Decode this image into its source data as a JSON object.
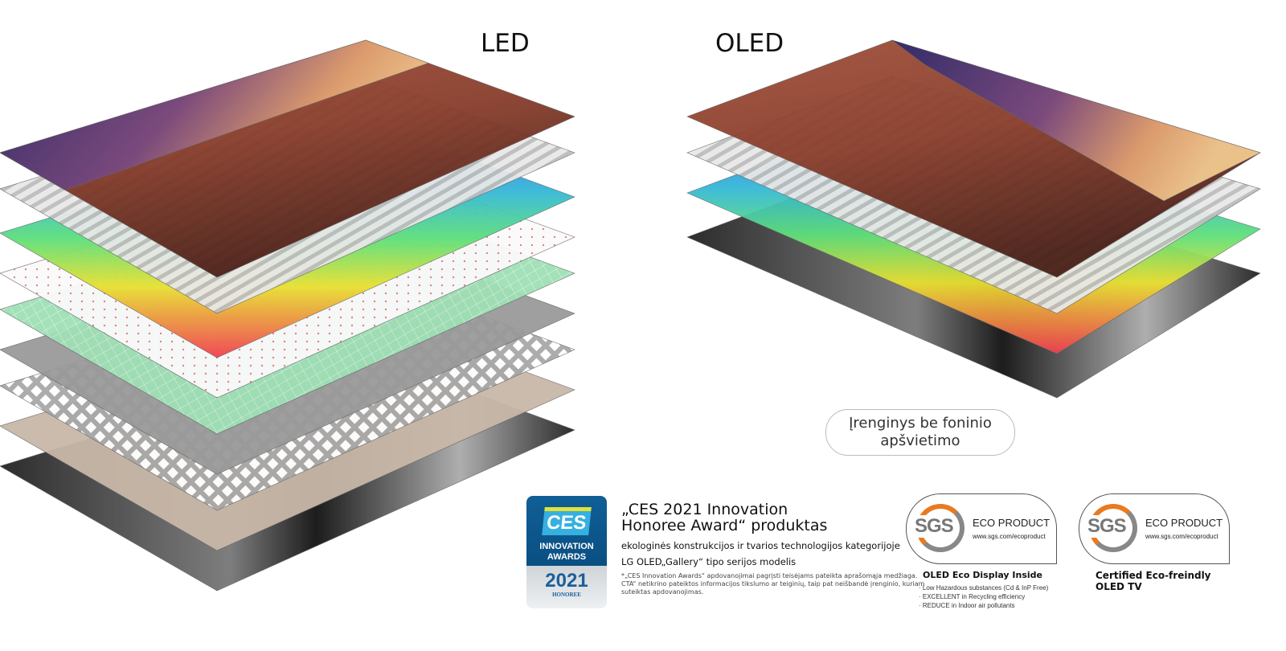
{
  "titles": {
    "led": "LED",
    "oled": "OLED"
  },
  "oled_badge": {
    "line1": "Įrenginys be foninio",
    "line2": "apšvietimo"
  },
  "ces": {
    "logo": "CES",
    "innovation": "INNOVATION",
    "awards": "AWARDS",
    "year": "2021",
    "honoree": "HONOREE",
    "headline1": "„CES 2021 Innovation",
    "headline2": "Honoree Award“ produktas",
    "line1": "ekologinės konstrukcijos ir tvarios technologijos kategorijoje",
    "line2": "LG OLED„Gallery“ tipo serijos modelis",
    "footnote": "*„CES Innovation Awards“ apdovanojimai pagrįsti teisėjams pateikta aprašomąja medžiaga. CTA“ netikrino pateiktos informacijos tikslumo ar teiginių, taip pat neišbandė įrenginio, kuriam suteiktas apdovanojimas."
  },
  "sgs": [
    {
      "logo": "SGS",
      "product": "ECO PRODUCT",
      "url": "www.sgs.com/ecoproduct",
      "caption": "OLED Eco Display Inside",
      "bullets": [
        "· Low Hazardous substances (Cd & InP Free)",
        "· EXCELLENT in Recycling efficiency",
        "· REDUCE in Indoor air pollutants"
      ]
    },
    {
      "logo": "SGS",
      "product": "ECO PRODUCT",
      "url": "www.sgs.com/ecoproduct",
      "caption1": "Certified Eco-freindly",
      "caption2": "OLED TV"
    }
  ]
}
